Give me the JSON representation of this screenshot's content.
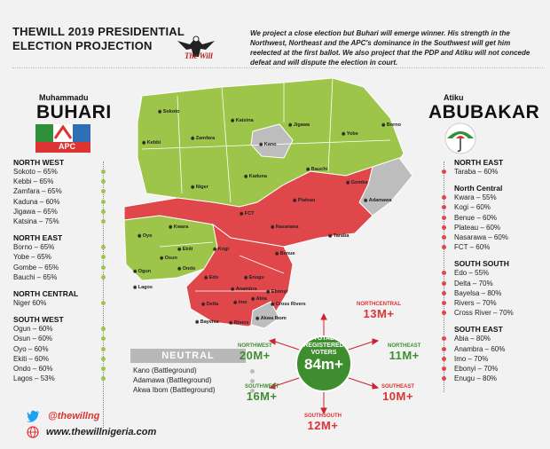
{
  "header": {
    "title_line1": "THEWILL 2019 PRESIDENTIAL",
    "title_line2": "ELECTION PROJECTION",
    "logo_text": "The Will",
    "summary": "We project a close election but Buhari will emerge winner. His strength in the Northwest, Northeast and the APC's dominance in the Southwest will get him reelected at the first ballot. We also project that the PDP and Atiku will not concede defeat and will dispute the election in court."
  },
  "colors": {
    "apc": "#9dc54a",
    "pdp": "#e0474b",
    "neutral": "#bdbdbd",
    "circle": "#3e8e2f"
  },
  "buhari": {
    "first_name": "Muhammadu",
    "last_name": "BUHARI",
    "party": "APC",
    "sections": [
      {
        "head": "NORTH WEST",
        "items": [
          "Sokoto – 65%",
          "Kebbi – 65%",
          "Zamfara – 65%",
          "Kaduna – 60%",
          "Jigawa – 65%",
          "Katsina – 75%"
        ]
      },
      {
        "head": "NORTH EAST",
        "items": [
          "Borno – 65%",
          "Yobe – 65%",
          "Gombe – 65%",
          "Bauchi – 65%"
        ]
      },
      {
        "head": "NORTH CENTRAL",
        "items": [
          "Niger 60%"
        ]
      },
      {
        "head": "SOUTH WEST",
        "items": [
          "Ogun – 60%",
          "Osun – 60%",
          "Oyo – 60%",
          "Ekiti – 60%",
          "Ondo – 60%",
          "Lagos – 53%"
        ]
      }
    ]
  },
  "atiku": {
    "first_name": "Atiku",
    "last_name": "ABUBAKAR",
    "sections": [
      {
        "head": "NORTH EAST",
        "items": [
          "Taraba – 60%"
        ]
      },
      {
        "head": "North Central",
        "items": [
          "Kwara – 55%",
          "Kogi – 60%",
          "Benue – 60%",
          "Plateau – 60%",
          "Nasarawa – 60%",
          "FCT – 60%"
        ]
      },
      {
        "head": "SOUTH SOUTH",
        "items": [
          "Edo – 55%",
          "Delta – 70%",
          "Bayelsa – 80%",
          "Rivers – 70%",
          "Cross River – 70%"
        ]
      },
      {
        "head": "SOUTH EAST",
        "items": [
          "Abia – 80%",
          "Anambra – 60%",
          "Imo – 70%",
          "Ebonyi – 70%",
          "Enugu – 80%"
        ]
      }
    ]
  },
  "neutral": {
    "title": "NEUTRAL",
    "items": [
      "Kano (Battleground)",
      "Adamawa (Battleground)",
      "Akwa Ibom (Battleground)"
    ]
  },
  "voters": {
    "line1": "TOTAL",
    "line2": "REGISTERED",
    "line3": "VOTERS",
    "total": "84m+",
    "regions": [
      {
        "name": "NORTHCENTRAL",
        "value": "13M+"
      },
      {
        "name": "NORTHWEST",
        "value": "20M+"
      },
      {
        "name": "NORTHEAST",
        "value": "11M+"
      },
      {
        "name": "SOUTHWEST",
        "value": "16M+"
      },
      {
        "name": "SOUTHEAST",
        "value": "10M+"
      },
      {
        "name": "SOUTHSOUTH",
        "value": "12M+"
      }
    ]
  },
  "map_labels": [
    "Sokoto",
    "Katsina",
    "Jigawa",
    "Yobe",
    "Borno",
    "Kebbi",
    "Zamfara",
    "Kano",
    "Kaduna",
    "Bauchi",
    "Gombe",
    "Adamawa",
    "Niger",
    "FCT",
    "Plateau",
    "Kwara",
    "Nasarawa",
    "Taraba",
    "Oyo",
    "Kogi",
    "Benue",
    "Ekiti",
    "Osun",
    "Ogun",
    "Ondo",
    "Edo",
    "Enugu",
    "Lagos",
    "Ebonyi",
    "Anambra",
    "Delta",
    "Imo",
    "Abia",
    "Cross Rivers",
    "Bayelsa",
    "Rivers",
    "Akwa Ibom"
  ],
  "footer": {
    "twitter": "@thewillng",
    "website": "www.thewillnigeria.com"
  }
}
